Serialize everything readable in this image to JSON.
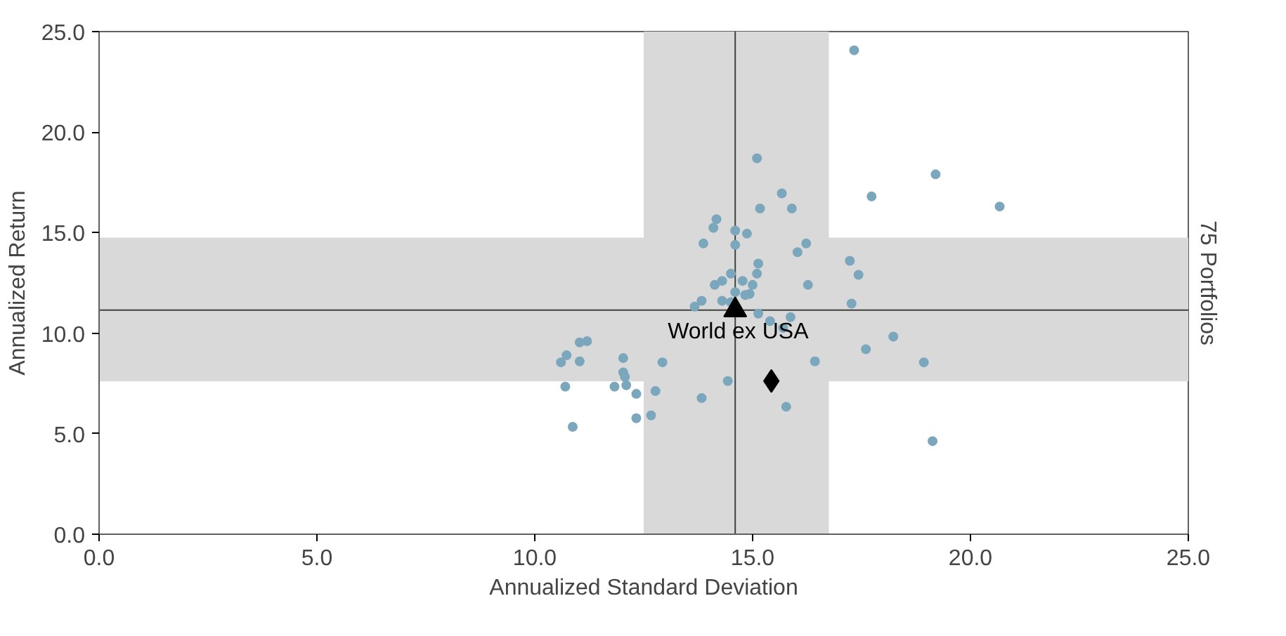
{
  "chart_data": {
    "type": "scatter",
    "xlabel": "Annualized Standard Deviation",
    "ylabel": "Annualized Return",
    "y2label": "75 Portfolios",
    "xlim": [
      0,
      25
    ],
    "ylim": [
      0,
      25
    ],
    "xticks": [
      {
        "value": 0,
        "label": "0.0"
      },
      {
        "value": 5,
        "label": "5.0"
      },
      {
        "value": 10,
        "label": "10.0"
      },
      {
        "value": 15,
        "label": "15.0"
      },
      {
        "value": 20,
        "label": "20.0"
      },
      {
        "value": 25,
        "label": "25.0"
      }
    ],
    "yticks": [
      {
        "value": 0,
        "label": "0.0"
      },
      {
        "value": 5,
        "label": "5.0"
      },
      {
        "value": 10,
        "label": "10.0"
      },
      {
        "value": 15,
        "label": "15.0"
      },
      {
        "value": 20,
        "label": "20.0"
      },
      {
        "value": 25,
        "label": "25.0"
      }
    ],
    "grid": false,
    "bands": [
      {
        "axis": "x",
        "from": 12.5,
        "to": 16.75,
        "color": "#d9d9d9"
      },
      {
        "axis": "y",
        "from": 7.6,
        "to": 14.75,
        "color": "#d9d9d9"
      }
    ],
    "ref_lines": [
      {
        "axis": "x",
        "value": 14.6,
        "color": "#404040"
      },
      {
        "axis": "y",
        "value": 11.15,
        "color": "#404040"
      }
    ],
    "series": [
      {
        "color": "#7ba7bd",
        "marker": "circle",
        "x": [
          17.33,
          15.1,
          19.2,
          17.73,
          20.67,
          15.67,
          15.17,
          15.9,
          14.87,
          16.23,
          16.03,
          15.13,
          15.1,
          17.23,
          17.43,
          16.27,
          14.77,
          15.0,
          14.83,
          17.27,
          15.13,
          15.4,
          15.87,
          15.7,
          17.6,
          18.23,
          16.43,
          18.93,
          15.77,
          19.13,
          14.17,
          14.1,
          14.6,
          13.87,
          14.6,
          14.5,
          14.3,
          14.13,
          14.6,
          14.93,
          13.83,
          14.3,
          14.5,
          13.67,
          11.03,
          11.2,
          10.73,
          10.6,
          11.03,
          12.03,
          12.93,
          12.03,
          12.07,
          10.7,
          11.83,
          12.1,
          12.33,
          12.77,
          14.43,
          13.83,
          12.33,
          12.67,
          10.87
        ],
        "values": [
          24.07,
          18.7,
          17.9,
          16.8,
          16.3,
          16.95,
          16.2,
          16.2,
          14.95,
          14.46,
          14.03,
          13.46,
          12.96,
          13.6,
          12.9,
          12.4,
          12.6,
          12.4,
          11.9,
          11.47,
          10.97,
          10.6,
          10.8,
          10.26,
          9.2,
          9.83,
          8.6,
          8.55,
          6.34,
          4.63,
          15.67,
          15.24,
          15.1,
          14.46,
          14.39,
          12.96,
          12.6,
          12.4,
          12.04,
          11.95,
          11.61,
          11.61,
          11.54,
          11.32,
          9.54,
          9.6,
          8.9,
          8.55,
          8.6,
          8.76,
          8.55,
          8.05,
          7.83,
          7.34,
          7.34,
          7.41,
          6.98,
          7.12,
          7.62,
          6.77,
          5.77,
          5.91,
          5.34
        ]
      },
      {
        "color": "#000000",
        "marker": "diamond",
        "x": [
          15.43
        ],
        "values": [
          7.62
        ]
      },
      {
        "name": "World ex USA",
        "color": "#000000",
        "marker": "triangle",
        "x": [
          14.6
        ],
        "values": [
          11.15
        ]
      }
    ]
  }
}
